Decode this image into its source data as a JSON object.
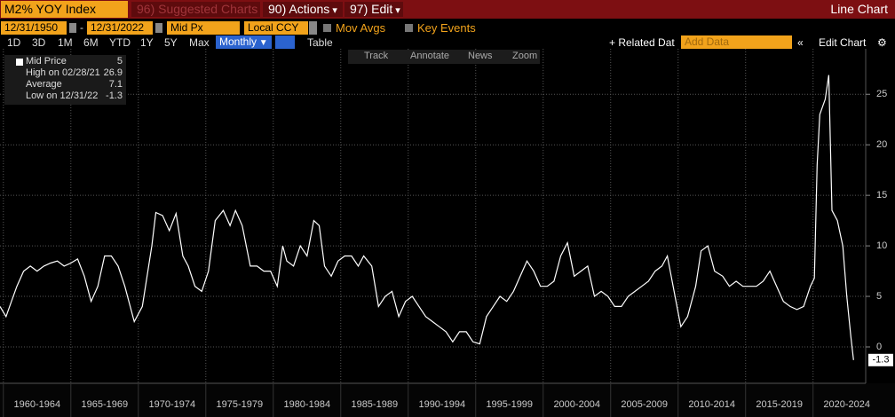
{
  "toolbar": {
    "ticker": "M2% YOY Index",
    "suggested": "96) Suggested Charts",
    "actions": "90) Actions",
    "edit": "97) Edit",
    "chart_kind": "Line Chart"
  },
  "controls": {
    "start": "12/31/1950",
    "end": "12/31/2022",
    "field": "Mid Px",
    "currency": "Local CCY",
    "mov_avgs": "Mov Avgs",
    "key_events": "Key Events",
    "periods": [
      "1D",
      "3D",
      "1M",
      "6M",
      "YTD",
      "1Y",
      "5Y",
      "Max"
    ],
    "frequency": "Monthly",
    "table": "Table",
    "related": "+ Related Dat",
    "add_data": "Add Data",
    "edit_chart": "Edit Chart"
  },
  "tools": [
    "Track",
    "Annotate",
    "News",
    "Zoom"
  ],
  "chart_data": {
    "type": "line",
    "x": [
      1959.75,
      1960.2,
      1960.6,
      1961,
      1961.5,
      1962,
      1962.5,
      1963,
      1963.5,
      1964,
      1964.5,
      1965,
      1965.5,
      1966,
      1966.5,
      1967,
      1967.5,
      1968,
      1968.5,
      1969,
      1969.7,
      1970.3,
      1971,
      1971.3,
      1971.8,
      1972.3,
      1972.8,
      1973.3,
      1973.7,
      1974.2,
      1974.7,
      1975.2,
      1975.7,
      1976.3,
      1976.8,
      1977.2,
      1977.7,
      1978.3,
      1978.8,
      1979.3,
      1979.8,
      1980.3,
      1980.7,
      1981,
      1981.5,
      1982,
      1982.5,
      1983,
      1983.4,
      1983.8,
      1984.3,
      1984.8,
      1985.3,
      1985.8,
      1986.3,
      1986.7,
      1987.3,
      1987.8,
      1988.3,
      1988.8,
      1989.3,
      1989.8,
      1990.3,
      1990.8,
      1991.3,
      1991.8,
      1992.3,
      1992.8,
      1993.3,
      1993.8,
      1994.3,
      1994.8,
      1995.3,
      1995.8,
      1996.3,
      1996.8,
      1997.3,
      1997.8,
      1998.3,
      1998.8,
      1999.3,
      1999.8,
      2000.3,
      2000.8,
      2001.3,
      2001.8,
      2002.3,
      2002.8,
      2003.3,
      2003.8,
      2004.3,
      2004.8,
      2005.3,
      2005.8,
      2006.3,
      2006.8,
      2007.3,
      2007.8,
      2008.3,
      2008.8,
      2009.2,
      2009.7,
      2010.2,
      2010.7,
      2011.3,
      2011.7,
      2012.2,
      2012.7,
      2013.3,
      2013.8,
      2014.3,
      2014.8,
      2015.3,
      2015.8,
      2016.3,
      2016.8,
      2017.3,
      2017.8,
      2018.3,
      2018.8,
      2019.3,
      2019.8,
      2020.1,
      2020.3,
      2020.5,
      2020.9,
      2021.16,
      2021.4,
      2021.8,
      2022.2,
      2022.5,
      2022.8,
      2023
    ],
    "series": [
      {
        "name": "Mid Price",
        "color": "#ffffff",
        "values": [
          4,
          3,
          4.5,
          6,
          7.5,
          8,
          7.5,
          8,
          8.3,
          8.5,
          8,
          8.3,
          8.7,
          7,
          4.5,
          6,
          9,
          9,
          8,
          6,
          2.5,
          4,
          10,
          13.3,
          13,
          11.5,
          13.2,
          9,
          8,
          6,
          5.5,
          7.5,
          12.5,
          13.5,
          12,
          13.5,
          12,
          8,
          8,
          7.5,
          7.5,
          6,
          10,
          8.5,
          8,
          10,
          9,
          12.5,
          12,
          8,
          7,
          8.5,
          9,
          9,
          8,
          9,
          8,
          4,
          5,
          5.5,
          3,
          4.5,
          5,
          4,
          3,
          2.5,
          2,
          1.5,
          0.5,
          1.5,
          1.5,
          0.5,
          0.3,
          3,
          4,
          5,
          4.5,
          5.5,
          7,
          8.5,
          7.5,
          6,
          6,
          6.5,
          9,
          10.3,
          7,
          7.5,
          8,
          5,
          5.5,
          5,
          4,
          4,
          5,
          5.5,
          6,
          6.5,
          7.5,
          8,
          9,
          5.5,
          2,
          3,
          6,
          9.5,
          10,
          7.5,
          7,
          6,
          6.5,
          6,
          6,
          6,
          6.5,
          7.5,
          6,
          4.5,
          4,
          3.7,
          4,
          6,
          6.8,
          18,
          23,
          24.5,
          26.9,
          13.5,
          12.5,
          10,
          5,
          1,
          -1.3
        ]
      }
    ],
    "legend_stats": [
      {
        "label": "High on 02/28/21",
        "value": 26.9
      },
      {
        "label": "Average",
        "value": 7.1
      },
      {
        "label": "Low on 12/31/22",
        "value": -1.3
      }
    ],
    "xlim": [
      1959.75,
      2023.9
    ],
    "xticks": [
      1960,
      1965,
      1970,
      1975,
      1980,
      1985,
      1990,
      1995,
      2000,
      2005,
      2010,
      2015,
      2020,
      2025
    ],
    "x_labels": [
      "1960-1964",
      "1965-1969",
      "1970-1974",
      "1975-1979",
      "1980-1984",
      "1985-1989",
      "1990-1994",
      "1995-1999",
      "2000-2004",
      "2005-2009",
      "2010-2014",
      "2015-2019",
      "2020-2024"
    ],
    "ylim": [
      -3.6,
      29.5
    ],
    "yticks": [
      0,
      5,
      10,
      15,
      20,
      25
    ],
    "grid": true
  }
}
